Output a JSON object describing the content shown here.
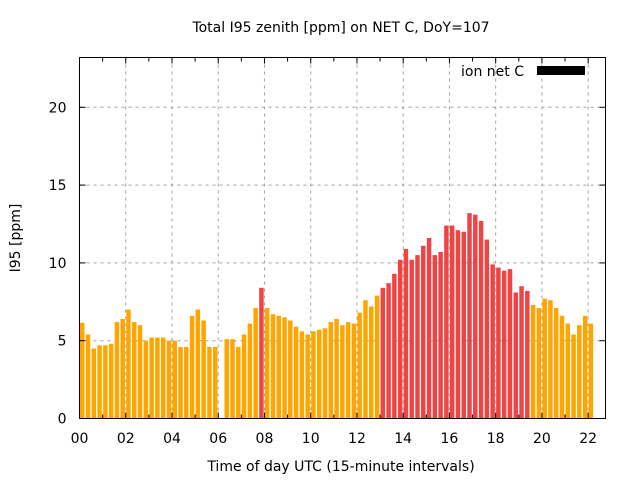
{
  "chart_data": {
    "type": "bar",
    "title": "Total I95 zenith [ppm] on NET C, DoY=107",
    "xlabel": "Time of day UTC (15-minute intervals)",
    "ylabel": "I95 [ppm]",
    "ylim": [
      0,
      23.2
    ],
    "xlim_hours": [
      0,
      22.75
    ],
    "yticks": [
      0,
      5,
      10,
      15,
      20
    ],
    "xtick_labels": [
      "00",
      "02",
      "04",
      "06",
      "08",
      "10",
      "12",
      "14",
      "16",
      "18",
      "20",
      "22"
    ],
    "grid": true,
    "legend": {
      "label": "ion net C",
      "placement": "top-right",
      "color": "#000000"
    },
    "colors": {
      "normal": "#ffa500",
      "high": "#ef4444",
      "axis": "#000000",
      "grid": "#a0a0a0"
    },
    "interval_minutes": 15,
    "series": [
      {
        "name": "I95",
        "values": [
          6.15,
          5.4,
          4.5,
          4.7,
          4.7,
          4.8,
          6.2,
          6.4,
          7.0,
          6.2,
          6.0,
          5.0,
          5.2,
          5.2,
          5.2,
          5.0,
          5.0,
          4.6,
          4.6,
          6.6,
          7.0,
          6.3,
          4.6,
          4.6,
          null,
          5.1,
          5.1,
          4.6,
          5.4,
          6.1,
          7.1,
          8.4,
          7.1,
          6.7,
          6.6,
          6.5,
          6.3,
          5.9,
          5.6,
          5.4,
          5.6,
          5.7,
          5.8,
          6.2,
          6.4,
          6.0,
          6.2,
          6.1,
          6.8,
          7.6,
          7.2,
          7.9,
          8.4,
          8.7,
          9.3,
          10.2,
          10.9,
          10.2,
          10.5,
          11.1,
          11.6,
          10.5,
          10.7,
          12.4,
          12.4,
          12.1,
          12.0,
          13.2,
          13.1,
          12.7,
          11.5,
          9.9,
          9.7,
          9.5,
          9.6,
          8.1,
          8.5,
          8.2,
          7.3,
          7.1,
          7.7,
          7.6,
          7.1,
          6.6,
          6.1,
          5.4,
          6.0,
          6.6,
          6.1
        ],
        "high_flag": [
          0,
          0,
          0,
          0,
          0,
          0,
          0,
          0,
          0,
          0,
          0,
          0,
          0,
          0,
          0,
          0,
          0,
          0,
          0,
          0,
          0,
          0,
          0,
          0,
          0,
          0,
          0,
          0,
          0,
          0,
          0,
          1,
          0,
          0,
          0,
          0,
          0,
          0,
          0,
          0,
          0,
          0,
          0,
          0,
          0,
          0,
          0,
          0,
          0,
          0,
          0,
          0,
          1,
          1,
          1,
          1,
          1,
          1,
          1,
          1,
          1,
          1,
          1,
          1,
          1,
          1,
          1,
          1,
          1,
          1,
          1,
          1,
          1,
          1,
          1,
          1,
          1,
          1,
          0,
          0,
          0,
          0,
          0,
          0,
          0,
          0,
          0,
          0,
          0
        ]
      }
    ]
  }
}
